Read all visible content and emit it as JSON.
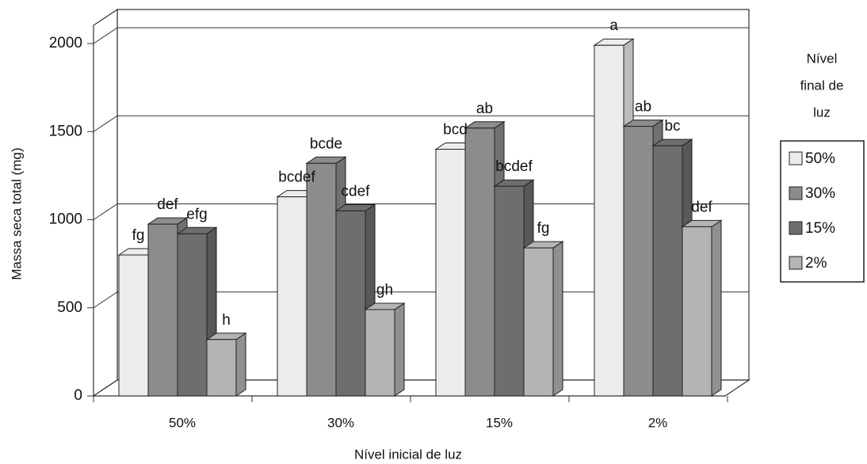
{
  "chart_data": {
    "type": "bar3d",
    "xlabel": "Nível inicial de luz",
    "ylabel": "Massa seca total (mg)",
    "legend_title": [
      "Nível",
      "final de",
      "luz"
    ],
    "categories": [
      "50%",
      "30%",
      "15%",
      "2%"
    ],
    "series": [
      {
        "name": "50%",
        "color": "#ececec",
        "values": [
          800,
          1130,
          1400,
          1990
        ],
        "labels": [
          "fg",
          "bcdef",
          "bcd",
          "a"
        ]
      },
      {
        "name": "30%",
        "color": "#8c8c8c",
        "values": [
          975,
          1320,
          1520,
          1530
        ],
        "labels": [
          "def",
          "bcde",
          "ab",
          "ab"
        ]
      },
      {
        "name": "15%",
        "color": "#6e6e6e",
        "values": [
          920,
          1050,
          1190,
          1420
        ],
        "labels": [
          "efg",
          "cdef",
          "bcdef",
          "bc"
        ]
      },
      {
        "name": "2%",
        "color": "#b4b4b4",
        "values": [
          320,
          490,
          840,
          960
        ],
        "labels": [
          "h",
          "gh",
          "fg",
          "def"
        ]
      }
    ],
    "ylim": [
      0,
      2000
    ],
    "yticks": [
      0,
      500,
      1000,
      1500,
      2000
    ],
    "grid": true,
    "legend": "right"
  }
}
